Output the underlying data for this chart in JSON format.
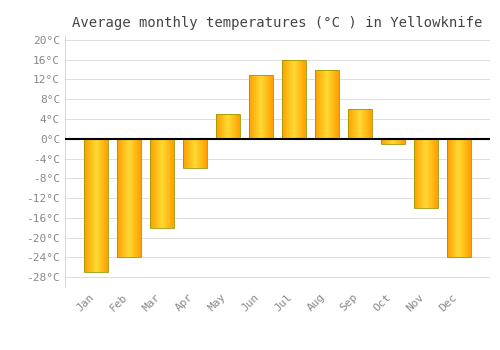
{
  "title": "Average monthly temperatures (°C ) in Yellowknife",
  "months": [
    "Jan",
    "Feb",
    "Mar",
    "Apr",
    "May",
    "Jun",
    "Jul",
    "Aug",
    "Sep",
    "Oct",
    "Nov",
    "Dec"
  ],
  "values": [
    -27,
    -24,
    -18,
    -6,
    5,
    13,
    16,
    14,
    6,
    -1,
    -14,
    -24
  ],
  "bar_color": "#FFA500",
  "bar_edge_color": "#B8860B",
  "ylim_min": -30,
  "ylim_max": 21,
  "yticks": [
    -28,
    -24,
    -20,
    -16,
    -12,
    -8,
    -4,
    0,
    4,
    8,
    12,
    16,
    20
  ],
  "background_color": "#ffffff",
  "grid_color": "#dddddd",
  "title_fontsize": 10,
  "tick_fontsize": 8,
  "zero_line_color": "#000000",
  "tick_color": "#888888",
  "bar_width": 0.72
}
